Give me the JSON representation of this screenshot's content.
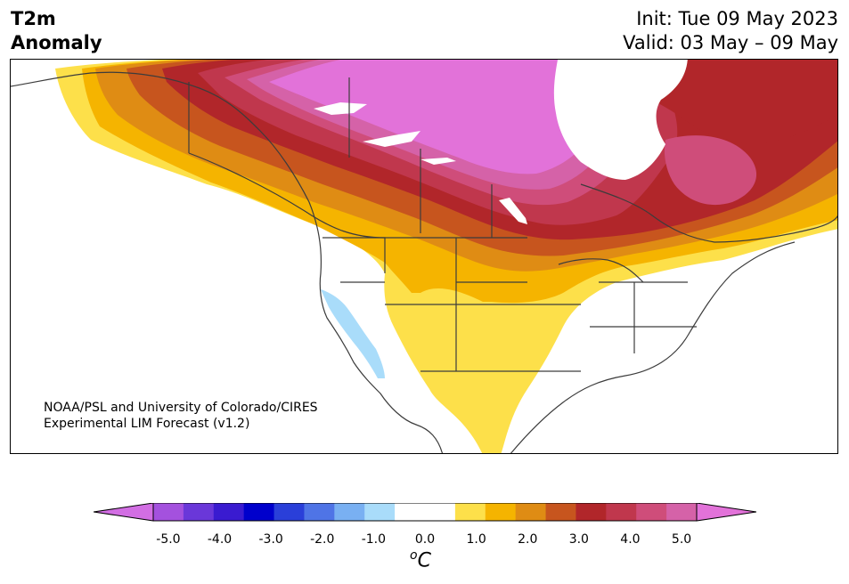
{
  "title": {
    "line1": "T2m",
    "line2": "Anomaly"
  },
  "init": {
    "line1": "Init: Tue 09 May 2023",
    "line2": "Valid: 03 May – 09 May"
  },
  "credit": {
    "line1": "NOAA/PSL and University of Colorado/CIRES",
    "line2": "Experimental LIM Forecast (v1.2)"
  },
  "colorbar": {
    "colors": [
      "#d26ee3",
      "#a451de",
      "#6a37d9",
      "#3a1bd0",
      "#0000cc",
      "#2a3fd9",
      "#4f74e6",
      "#79b0f2",
      "#a9dcfa",
      "#ffffff",
      "#ffffff",
      "#fde04a",
      "#f5b400",
      "#df8c14",
      "#c7551e",
      "#b1262a",
      "#c0374d",
      "#cf4d7a",
      "#d562a8",
      "#e272d9"
    ],
    "tick_labels": [
      "-5.0",
      "-4.0",
      "-3.0",
      "-2.0",
      "-1.0",
      "0.0",
      "1.0",
      "2.0",
      "3.0",
      "4.0",
      "5.0"
    ],
    "unit_base": "C",
    "unit_sup": "o",
    "extend": "both"
  },
  "map_colors": {
    "t05": "#fde04a",
    "t10": "#f5b400",
    "t15": "#df8c14",
    "t20": "#c7551e",
    "t25": "#b1262a",
    "t30": "#c0374d",
    "t35": "#cf4d7a",
    "t40": "#d562a8",
    "t45": "#e272d9",
    "cool": "#a9dcfa",
    "lakes": "#ffffff",
    "border": "#3c3c3c"
  }
}
